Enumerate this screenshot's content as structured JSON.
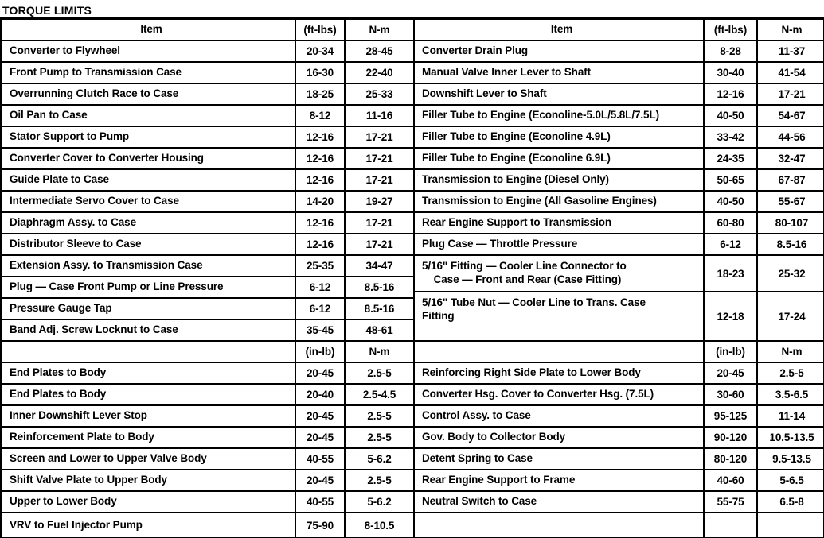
{
  "title": "TORQUE LIMITS",
  "left_table": {
    "header": {
      "item": "Item",
      "unit": "(ft-lbs)",
      "nm": "N-m"
    },
    "subheader": {
      "item": "",
      "unit": "(in-lb)",
      "nm": "N-m"
    },
    "ft_rows": [
      {
        "item": "Converter to Flywheel",
        "v1": "20-34",
        "v2": "28-45"
      },
      {
        "item": "Front Pump to Transmission Case",
        "v1": "16-30",
        "v2": "22-40"
      },
      {
        "item": "Overrunning Clutch Race to Case",
        "v1": "18-25",
        "v2": "25-33"
      },
      {
        "item": "Oil Pan to Case",
        "v1": "8-12",
        "v2": "11-16"
      },
      {
        "item": "Stator Support to Pump",
        "v1": "12-16",
        "v2": "17-21"
      },
      {
        "item": "Converter Cover to Converter Housing",
        "v1": "12-16",
        "v2": "17-21"
      },
      {
        "item": "Guide Plate to Case",
        "v1": "12-16",
        "v2": "17-21"
      },
      {
        "item": "Intermediate Servo Cover to Case",
        "v1": "14-20",
        "v2": "19-27"
      },
      {
        "item": "Diaphragm Assy. to Case",
        "v1": "12-16",
        "v2": "17-21"
      },
      {
        "item": "Distributor Sleeve to Case",
        "v1": "12-16",
        "v2": "17-21"
      },
      {
        "item": "Extension Assy. to Transmission Case",
        "v1": "25-35",
        "v2": "34-47"
      },
      {
        "item": "Plug — Case Front Pump or Line Pressure",
        "v1": "6-12",
        "v2": "8.5-16"
      },
      {
        "item": "Pressure Gauge Tap",
        "v1": "6-12",
        "v2": "8.5-16"
      },
      {
        "item": "Band Adj. Screw Locknut to Case",
        "v1": "35-45",
        "v2": "48-61"
      }
    ],
    "in_rows": [
      {
        "item": "End Plates to Body",
        "v1": "20-45",
        "v2": "2.5-5"
      },
      {
        "item": "End Plates to Body",
        "v1": "20-40",
        "v2": "2.5-4.5"
      },
      {
        "item": "Inner Downshift Lever Stop",
        "v1": "20-45",
        "v2": "2.5-5"
      },
      {
        "item": "Reinforcement Plate to Body",
        "v1": "20-45",
        "v2": "2.5-5"
      },
      {
        "item": "Screen and Lower to Upper Valve Body",
        "v1": "40-55",
        "v2": "5-6.2"
      },
      {
        "item": "Shift Valve Plate to Upper Body",
        "v1": "20-45",
        "v2": "2.5-5"
      },
      {
        "item": "Upper to Lower Body",
        "v1": "40-55",
        "v2": "5-6.2"
      },
      {
        "item": "VRV to Fuel Injector Pump",
        "v1": "75-90",
        "v2": "8-10.5"
      }
    ]
  },
  "right_table": {
    "header": {
      "item": "Item",
      "unit": "(ft-lbs)",
      "nm": "N-m"
    },
    "subheader": {
      "item": "",
      "unit": "(in-lb)",
      "nm": "N-m"
    },
    "ft_rows": [
      {
        "item": "Converter Drain Plug",
        "v1": "8-28",
        "v2": "11-37"
      },
      {
        "item": "Manual Valve Inner Lever to Shaft",
        "v1": "30-40",
        "v2": "41-54"
      },
      {
        "item": "Downshift Lever to Shaft",
        "v1": "12-16",
        "v2": "17-21"
      },
      {
        "item": "Filler Tube to Engine (Econoline-5.0L/5.8L/7.5L)",
        "v1": "40-50",
        "v2": "54-67"
      },
      {
        "item": "Filler Tube to Engine (Econoline 4.9L)",
        "v1": "33-42",
        "v2": "44-56"
      },
      {
        "item": "Filler Tube to Engine (Econoline 6.9L)",
        "v1": "24-35",
        "v2": "32-47"
      },
      {
        "item": "Transmission to Engine (Diesel Only)",
        "v1": "50-65",
        "v2": "67-87"
      },
      {
        "item": "Transmission to Engine (All Gasoline Engines)",
        "v1": "40-50",
        "v2": "55-67"
      },
      {
        "item": "Rear Engine Support to Transmission",
        "v1": "60-80",
        "v2": "80-107"
      },
      {
        "item": "Plug Case — Throttle Pressure",
        "v1": "6-12",
        "v2": "8.5-16"
      },
      {
        "item": "5/16\" Fitting — Cooler Line Connector to\n    Case — Front and Rear (Case Fitting)",
        "v1": "18-23",
        "v2": "25-32"
      },
      {
        "item": "5/16\" Tube Nut — Cooler Line to Trans. Case\nFitting",
        "v1": "12-18",
        "v2": "17-24"
      }
    ],
    "in_rows": [
      {
        "item": "Reinforcing Right Side Plate to Lower Body",
        "v1": "20-45",
        "v2": "2.5-5"
      },
      {
        "item": "Converter Hsg. Cover to Converter Hsg. (7.5L)",
        "v1": "30-60",
        "v2": "3.5-6.5"
      },
      {
        "item": "Control Assy. to Case",
        "v1": "95-125",
        "v2": "11-14"
      },
      {
        "item": "Gov. Body to Collector Body",
        "v1": "90-120",
        "v2": "10.5-13.5"
      },
      {
        "item": "Detent Spring to Case",
        "v1": "80-120",
        "v2": "9.5-13.5"
      },
      {
        "item": "Rear Engine Support to Frame",
        "v1": "40-60",
        "v2": "5-6.5"
      },
      {
        "item": "Neutral Switch to Case",
        "v1": "55-75",
        "v2": "6.5-8"
      },
      {
        "item": "",
        "v1": "",
        "v2": ""
      }
    ]
  }
}
